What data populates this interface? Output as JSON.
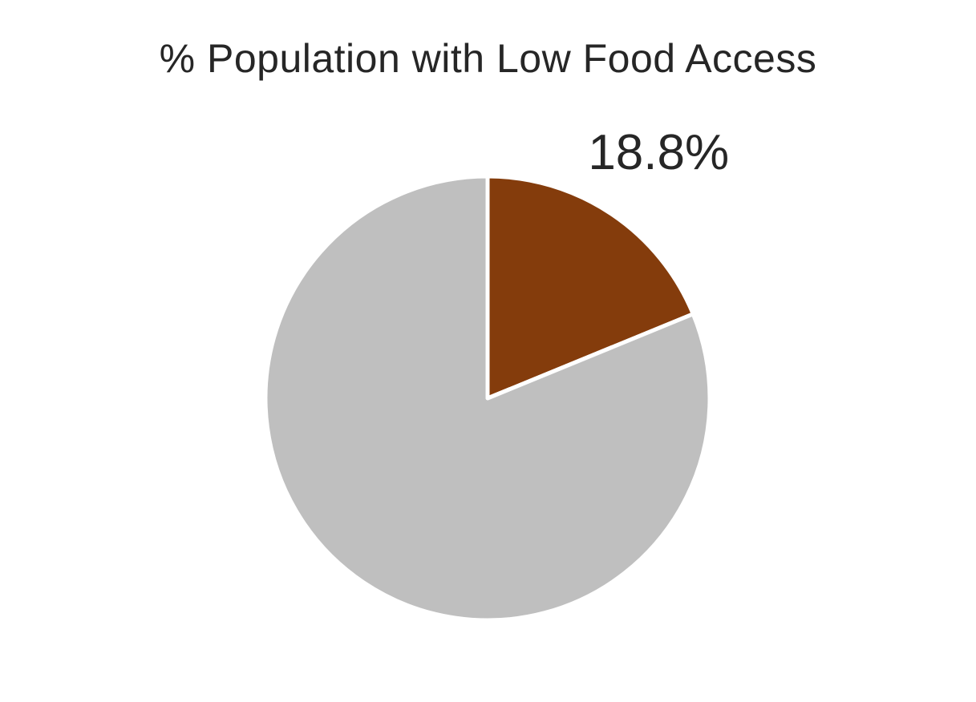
{
  "chart_data": {
    "type": "pie",
    "title": "% Population with Low Food Access",
    "slices": [
      {
        "value": 18.8,
        "label": "18.8%",
        "color": "#843C0C"
      },
      {
        "value": 81.2,
        "label": "",
        "color": "#BFBFBF"
      }
    ],
    "start_angle_deg": 0,
    "direction": "clockwise",
    "legend": "none"
  }
}
